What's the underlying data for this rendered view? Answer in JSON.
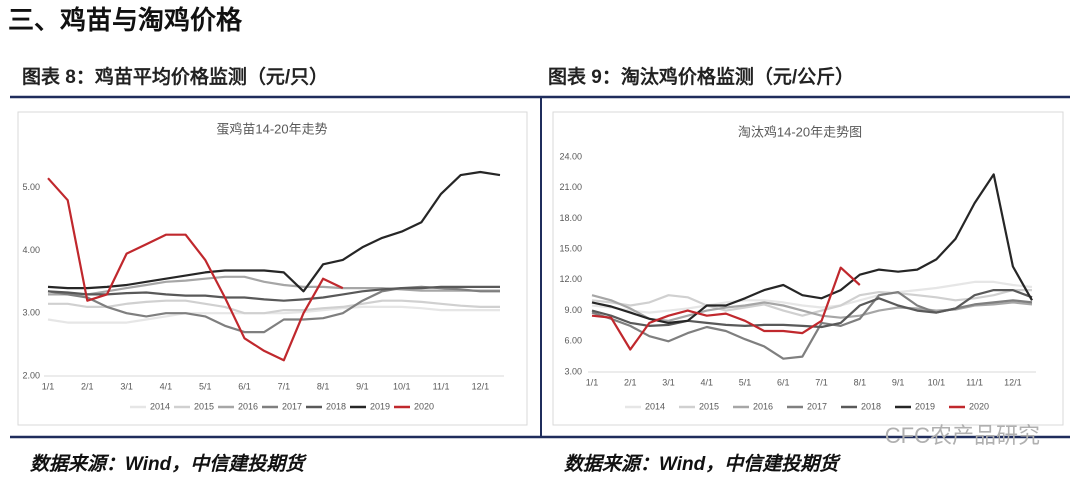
{
  "heading": "三、鸡苗与淘鸡价格",
  "panels": [
    {
      "caption": "图表 8：鸡苗平均价格监测（元/只）",
      "source": "数据来源：Wind，中信建投期货"
    },
    {
      "caption": "图表 9：淘汰鸡价格监测（元/公斤）",
      "source": "数据来源：Wind，中信建投期货"
    }
  ],
  "watermark": "CFC农产品研究",
  "chart_data": [
    {
      "type": "line",
      "title": "蛋鸡苗14-20年走势",
      "categories": [
        "1/1",
        null,
        "2/1",
        null,
        "3/1",
        null,
        "4/1",
        null,
        "5/1",
        null,
        "6/1",
        null,
        "7/1",
        null,
        "8/1",
        null,
        "9/1",
        null,
        "10/1",
        null,
        "11/1",
        null,
        "12/1",
        null
      ],
      "ylim": [
        2,
        5.6
      ],
      "yticks": [
        {
          "value": 2,
          "label": "2.00"
        },
        {
          "value": 3,
          "label": "3.00"
        },
        {
          "value": 4,
          "label": "4.00"
        },
        {
          "value": 5,
          "label": "5.00"
        }
      ],
      "series": [
        {
          "name": "2014",
          "color": "#e6e6e6",
          "values": [
            2.9,
            2.85,
            2.85,
            2.85,
            2.85,
            2.9,
            2.95,
            3.0,
            3.0,
            3.0,
            3.0,
            3.0,
            3.0,
            3.02,
            3.05,
            3.08,
            3.1,
            3.1,
            3.1,
            3.08,
            3.05,
            3.05,
            3.05,
            3.05
          ]
        },
        {
          "name": "2015",
          "color": "#d0d0d0",
          "values": [
            3.15,
            3.15,
            3.1,
            3.1,
            3.15,
            3.18,
            3.2,
            3.2,
            3.15,
            3.1,
            3.0,
            3.0,
            3.05,
            3.05,
            3.08,
            3.1,
            3.15,
            3.2,
            3.2,
            3.18,
            3.15,
            3.12,
            3.1,
            3.1
          ]
        },
        {
          "name": "2016",
          "color": "#a6a6a6",
          "values": [
            3.3,
            3.3,
            3.3,
            3.35,
            3.4,
            3.45,
            3.5,
            3.52,
            3.55,
            3.58,
            3.58,
            3.5,
            3.45,
            3.42,
            3.42,
            3.4,
            3.4,
            3.4,
            3.38,
            3.36,
            3.36,
            3.36,
            3.36,
            3.36
          ]
        },
        {
          "name": "2017",
          "color": "#7f7f7f",
          "values": [
            3.35,
            3.3,
            3.25,
            3.1,
            3.0,
            2.95,
            3.0,
            3.0,
            2.95,
            2.8,
            2.7,
            2.7,
            2.9,
            2.9,
            2.92,
            3.0,
            3.2,
            3.35,
            3.4,
            3.42,
            3.4,
            3.38,
            3.35,
            3.35
          ]
        },
        {
          "name": "2018",
          "color": "#595959",
          "values": [
            3.35,
            3.33,
            3.3,
            3.3,
            3.32,
            3.33,
            3.3,
            3.28,
            3.28,
            3.25,
            3.25,
            3.22,
            3.2,
            3.22,
            3.25,
            3.3,
            3.35,
            3.38,
            3.4,
            3.4,
            3.42,
            3.42,
            3.42,
            3.42
          ]
        },
        {
          "name": "2019",
          "color": "#262626",
          "values": [
            3.42,
            3.4,
            3.4,
            3.42,
            3.45,
            3.5,
            3.55,
            3.6,
            3.65,
            3.68,
            3.68,
            3.68,
            3.65,
            3.35,
            3.78,
            3.85,
            4.05,
            4.2,
            4.3,
            4.45,
            4.9,
            5.2,
            5.25,
            5.2
          ]
        },
        {
          "name": "2020",
          "color": "#c0282d",
          "values": [
            5.15,
            4.8,
            3.2,
            3.3,
            3.95,
            4.1,
            4.25,
            4.25,
            3.85,
            3.25,
            2.6,
            2.4,
            2.25,
            3.0,
            3.55,
            3.4,
            null,
            null,
            null,
            null,
            null,
            null,
            null,
            null
          ]
        }
      ]
    },
    {
      "type": "line",
      "title": "淘汰鸡14-20年走势图",
      "categories": [
        "1/1",
        null,
        "2/1",
        null,
        "3/1",
        null,
        "4/1",
        null,
        "5/1",
        null,
        "6/1",
        null,
        "7/1",
        null,
        "8/1",
        null,
        "9/1",
        null,
        "10/1",
        null,
        "11/1",
        null,
        "12/1",
        null
      ],
      "ylim": [
        3,
        24
      ],
      "yticks": [
        {
          "value": 3,
          "label": "3.00"
        },
        {
          "value": 6,
          "label": "6.00"
        },
        {
          "value": 9,
          "label": "9.00"
        },
        {
          "value": 12,
          "label": "12.00"
        },
        {
          "value": 15,
          "label": "15.00"
        },
        {
          "value": 18,
          "label": "18.00"
        },
        {
          "value": 21,
          "label": "21.00"
        },
        {
          "value": 24,
          "label": "24.00"
        }
      ],
      "series": [
        {
          "name": "2014",
          "color": "#e6e6e6",
          "values": [
            9.5,
            9.3,
            9.0,
            8.8,
            9.0,
            9.2,
            9.5,
            9.8,
            10.0,
            10.0,
            9.8,
            9.5,
            9.3,
            9.5,
            10.0,
            10.5,
            10.8,
            11.0,
            11.2,
            11.5,
            11.8,
            11.8,
            11.5,
            11.3
          ]
        },
        {
          "name": "2015",
          "color": "#d0d0d0",
          "values": [
            10.0,
            9.8,
            9.5,
            9.8,
            10.5,
            10.3,
            9.5,
            9.0,
            9.3,
            9.6,
            9.0,
            8.5,
            9.0,
            9.5,
            10.5,
            10.8,
            10.7,
            10.5,
            10.3,
            10.0,
            10.2,
            10.5,
            11.0,
            11.0
          ]
        },
        {
          "name": "2016",
          "color": "#a6a6a6",
          "values": [
            10.5,
            10.0,
            9.2,
            8.2,
            8.0,
            8.5,
            9.0,
            9.3,
            9.5,
            9.8,
            9.5,
            9.0,
            8.5,
            8.3,
            8.5,
            9.0,
            9.3,
            9.2,
            9.0,
            9.1,
            9.5,
            9.6,
            9.8,
            9.6
          ]
        },
        {
          "name": "2017",
          "color": "#7f7f7f",
          "values": [
            8.8,
            8.2,
            7.5,
            6.5,
            6.0,
            6.8,
            7.4,
            7.0,
            6.2,
            5.5,
            4.3,
            4.5,
            7.8,
            7.5,
            8.2,
            10.5,
            10.8,
            9.5,
            8.8,
            9.2,
            9.6,
            9.8,
            10.0,
            9.8
          ]
        },
        {
          "name": "2018",
          "color": "#595959",
          "values": [
            9.0,
            8.5,
            7.8,
            7.5,
            7.6,
            8.0,
            7.8,
            7.6,
            7.5,
            7.6,
            7.6,
            7.5,
            7.4,
            7.8,
            9.5,
            10.2,
            9.5,
            9.0,
            8.8,
            9.2,
            10.5,
            11.0,
            11.0,
            10.3
          ]
        },
        {
          "name": "2019",
          "color": "#262626",
          "values": [
            9.8,
            9.4,
            8.8,
            8.2,
            7.8,
            8.0,
            9.5,
            9.5,
            10.2,
            11.0,
            11.5,
            10.5,
            10.2,
            11.0,
            12.5,
            13.0,
            12.8,
            13.0,
            14.0,
            16.0,
            19.5,
            22.3,
            13.3,
            10.0
          ]
        },
        {
          "name": "2020",
          "color": "#c0282d",
          "values": [
            8.5,
            8.3,
            5.2,
            7.8,
            8.5,
            9.0,
            8.5,
            8.7,
            8.0,
            7.0,
            7.0,
            6.8,
            8.0,
            13.2,
            11.5,
            null,
            null,
            null,
            null,
            null,
            null,
            null,
            null,
            null
          ]
        }
      ]
    }
  ]
}
